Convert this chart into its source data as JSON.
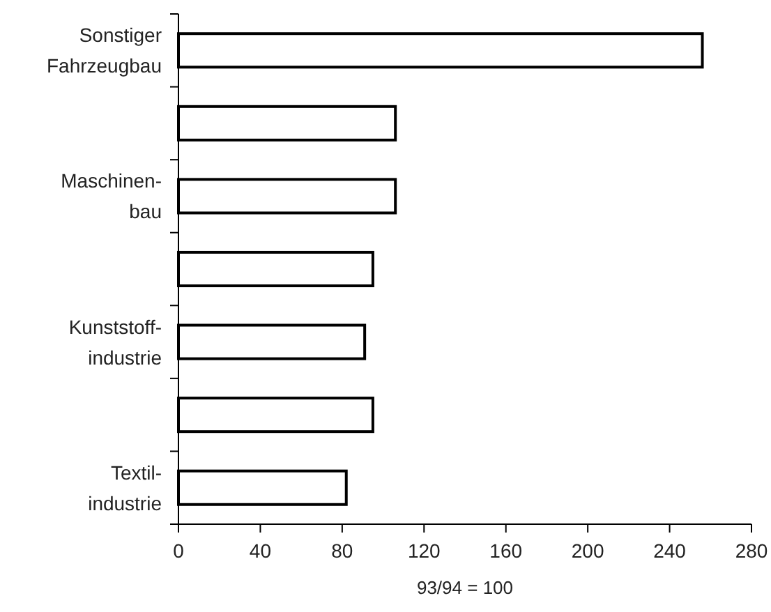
{
  "chart_data": {
    "type": "bar",
    "orientation": "horizontal",
    "xlabel": "93/94 = 100",
    "categories": [
      "Sonstiger\nFahrzeugbau",
      null,
      "Maschinen-\nbau",
      null,
      "Kunststoff-\nindustrie",
      null,
      "Textil-\nindustrie"
    ],
    "values": [
      256,
      106,
      106,
      95,
      91,
      95,
      82
    ],
    "color": "#ffffff",
    "xlim": [
      0,
      280
    ],
    "xticks": [
      0,
      40,
      80,
      120,
      160,
      200,
      240,
      280
    ],
    "grid": false
  }
}
